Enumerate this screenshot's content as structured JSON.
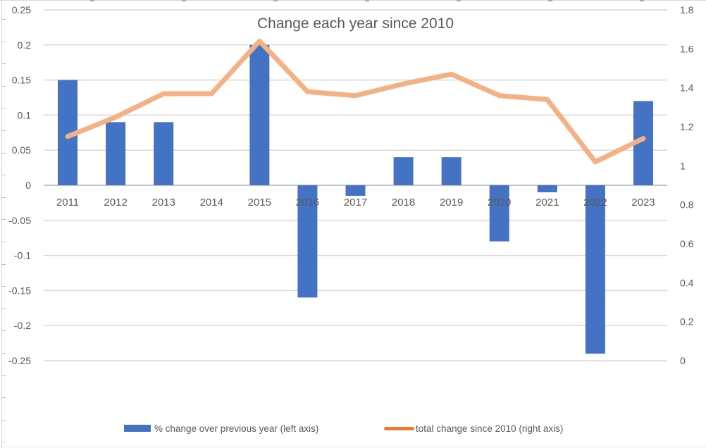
{
  "chart_data": {
    "type": "combo-bar-line",
    "title": "Change each year since 2010",
    "categories": [
      "2011",
      "2012",
      "2013",
      "2014",
      "2015",
      "2016",
      "2017",
      "2018",
      "2019",
      "2020",
      "2021",
      "2022",
      "2023"
    ],
    "series": [
      {
        "name": "% change over previous year (left axis)",
        "type": "bar",
        "axis": "left",
        "color": "#4472C4",
        "values": [
          0.15,
          0.09,
          0.09,
          0,
          0.2,
          -0.16,
          -0.015,
          0.04,
          0.04,
          -0.08,
          -0.01,
          -0.24,
          0.12
        ]
      },
      {
        "name": "total change since 2010 (right axis)",
        "type": "line",
        "axis": "right",
        "color": "#F4B183",
        "legend_color": "#ED7D31",
        "values": [
          1.15,
          1.25,
          1.37,
          1.37,
          1.64,
          1.38,
          1.36,
          1.42,
          1.47,
          1.36,
          1.34,
          1.02,
          1.14
        ]
      }
    ],
    "left_axis": {
      "min": -0.25,
      "max": 0.25,
      "step": 0.05,
      "ticks": [
        "0.25",
        "0.2",
        "0.15",
        "0.1",
        "0.05",
        "0",
        "-0.05",
        "-0.1",
        "-0.15",
        "-0.2",
        "-0.25"
      ]
    },
    "right_axis": {
      "min": 0,
      "max": 1.8,
      "step": 0.2,
      "ticks": [
        "1.8",
        "1.6",
        "1.4",
        "1.2",
        "1",
        "0.8",
        "0.6",
        "0.4",
        "0.2",
        "0"
      ]
    },
    "grid": true,
    "legend_position": "bottom",
    "colors": {
      "gridline": "#D9D9D9",
      "zero_axis": "#C6C6C6",
      "text": "#595959"
    }
  }
}
